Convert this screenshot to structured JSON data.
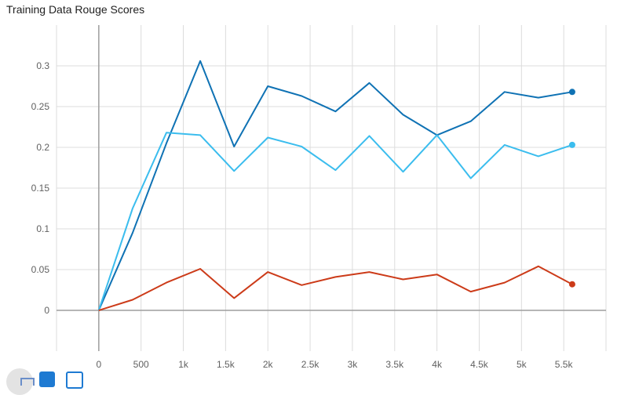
{
  "title": "Training Data Rouge Scores",
  "chart_data": {
    "type": "line",
    "title": "Training Data Rouge Scores",
    "xlabel": "",
    "ylabel": "",
    "xlim": [
      -500,
      6000
    ],
    "ylim": [
      -0.05,
      0.35
    ],
    "x_ticks": [
      0,
      500,
      1000,
      1500,
      2000,
      2500,
      3000,
      3500,
      4000,
      4500,
      5000,
      5500
    ],
    "x_tick_labels": [
      "0",
      "500",
      "1k",
      "1.5k",
      "2k",
      "2.5k",
      "3k",
      "3.5k",
      "4k",
      "4.5k",
      "5k",
      "5.5k"
    ],
    "y_ticks": [
      0,
      0.05,
      0.1,
      0.15,
      0.2,
      0.25,
      0.3
    ],
    "y_tick_labels": [
      "0",
      "0.05",
      "0.1",
      "0.15",
      "0.2",
      "0.25",
      "0.3"
    ],
    "grid": true,
    "series": [
      {
        "color": "#0f72b4",
        "x": [
          0,
          400,
          800,
          1200,
          1600,
          2000,
          2400,
          2800,
          3200,
          3600,
          4000,
          4400,
          4800,
          5200,
          5600
        ],
        "values": [
          0,
          0.095,
          0.205,
          0.306,
          0.201,
          0.275,
          0.263,
          0.244,
          0.279,
          0.24,
          0.215,
          0.232,
          0.268,
          0.261,
          0.268
        ]
      },
      {
        "color": "#3bbdee",
        "x": [
          0,
          400,
          800,
          1200,
          1600,
          2000,
          2400,
          2800,
          3200,
          3600,
          4000,
          4400,
          4800,
          5200,
          5600
        ],
        "values": [
          0,
          0.125,
          0.218,
          0.215,
          0.171,
          0.212,
          0.201,
          0.172,
          0.214,
          0.17,
          0.215,
          0.162,
          0.203,
          0.189,
          0.203
        ]
      },
      {
        "color": "#cc3b19",
        "x": [
          0,
          400,
          800,
          1200,
          1600,
          2000,
          2400,
          2800,
          3200,
          3600,
          4000,
          4400,
          4800,
          5200,
          5600
        ],
        "values": [
          0,
          0.013,
          0.034,
          0.051,
          0.015,
          0.047,
          0.031,
          0.041,
          0.047,
          0.038,
          0.044,
          0.023,
          0.034,
          0.054,
          0.032
        ]
      }
    ]
  },
  "toolbar": {
    "buttons": [
      {
        "icon": "fit-domain-icon"
      },
      {
        "icon": "toggle-y-axis-log-icon"
      },
      {
        "icon": "download-icon"
      }
    ]
  }
}
